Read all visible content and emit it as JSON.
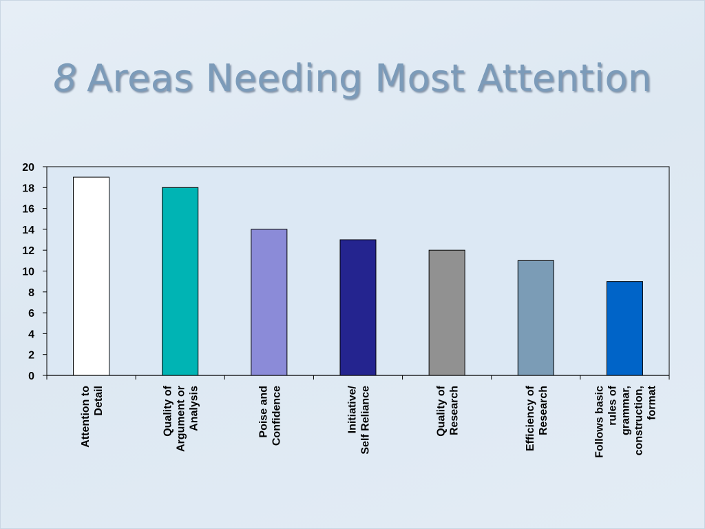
{
  "title": {
    "number": "8",
    "text": "Areas Needing Most Attention"
  },
  "chart_data": {
    "type": "bar",
    "title": "8 Areas Needing Most Attention",
    "categories": [
      [
        "Attention to",
        "Detail"
      ],
      [
        "Quality of",
        "Argument or",
        "Analysis"
      ],
      [
        "Poise and",
        "Confidence"
      ],
      [
        "Initiative/",
        "Self Reliance"
      ],
      [
        "Quality of",
        "Research"
      ],
      [
        "Efficiency of",
        "Research"
      ],
      [
        "Follows basic",
        "rules of",
        "grammar,",
        "construction,",
        "format"
      ]
    ],
    "values": [
      19,
      18,
      14,
      13,
      12,
      11,
      9
    ],
    "bar_colors": [
      "#ffffff",
      "#00b4b4",
      "#8b8bd8",
      "#24248f",
      "#919191",
      "#7b9cb6",
      "#0064c8"
    ],
    "ylim": [
      0,
      20
    ],
    "yticks": [
      0,
      2,
      4,
      6,
      8,
      10,
      12,
      14,
      16,
      18,
      20
    ],
    "plot_background": "#dce8f4",
    "xlabel": "",
    "ylabel": "",
    "grid": false,
    "legend": "none"
  }
}
